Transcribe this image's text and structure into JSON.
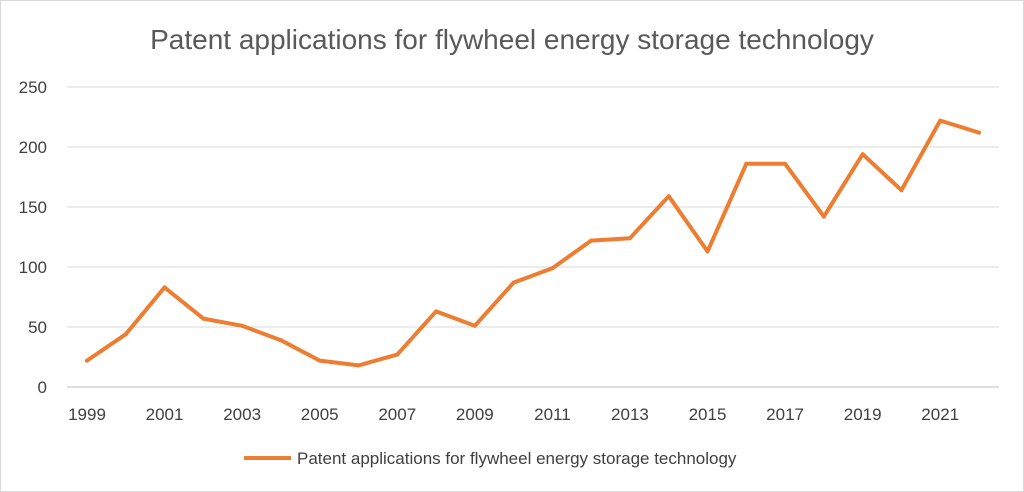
{
  "chart_data": {
    "type": "line",
    "title": "Patent applications for flywheel energy storage technology",
    "xlabel": "",
    "ylabel": "",
    "x": [
      1999,
      2000,
      2001,
      2002,
      2003,
      2004,
      2005,
      2006,
      2007,
      2008,
      2009,
      2010,
      2011,
      2012,
      2013,
      2014,
      2015,
      2016,
      2017,
      2018,
      2019,
      2020,
      2021,
      2022
    ],
    "x_tick_labels": [
      "1999",
      "2001",
      "2003",
      "2005",
      "2007",
      "2009",
      "2011",
      "2013",
      "2015",
      "2017",
      "2019",
      "2021"
    ],
    "y_tick_labels": [
      "0",
      "50",
      "100",
      "150",
      "200",
      "250"
    ],
    "ylim": [
      0,
      250
    ],
    "grid": true,
    "legend_position": "bottom",
    "series": [
      {
        "name": "Patent applications for flywheel energy storage technology",
        "color": "#ed7d31",
        "values": [
          22,
          44,
          83,
          57,
          51,
          39,
          22,
          18,
          27,
          63,
          51,
          87,
          99,
          122,
          124,
          159,
          113,
          186,
          186,
          142,
          194,
          164,
          222,
          212
        ]
      }
    ]
  }
}
